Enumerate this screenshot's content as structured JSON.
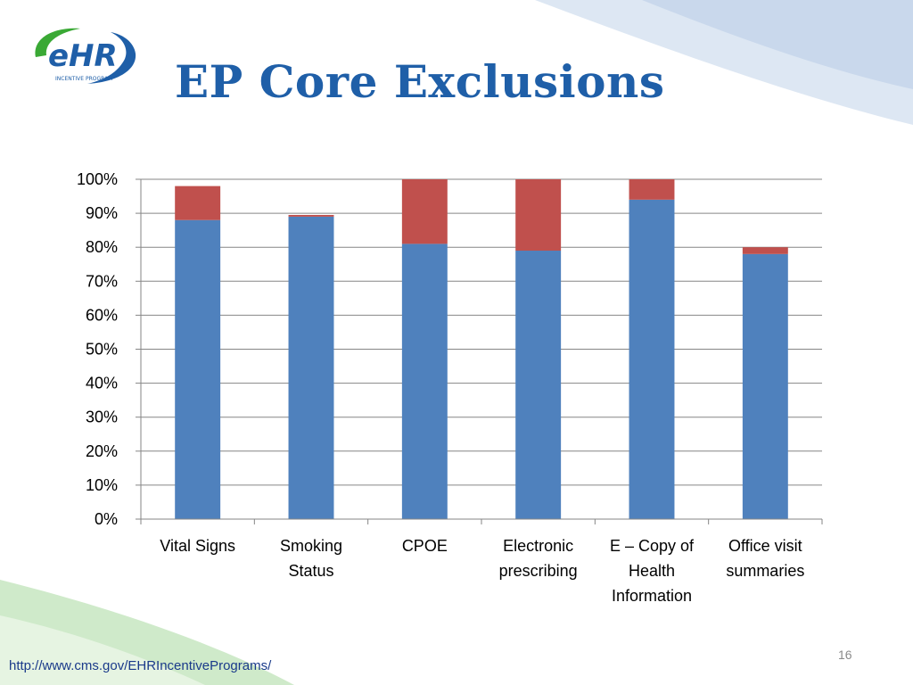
{
  "slide": {
    "title": "EP Core Exclusions",
    "url": "http://www.cms.gov/EHRIncentivePrograms/",
    "page_number": "16",
    "logo_text": "eHR",
    "logo_subtext": "INCENTIVE PROGRAM"
  },
  "colors": {
    "title": "#1f5fa8",
    "series_blue": "#4f81bd",
    "series_red": "#c0504d",
    "logo_green": "#3aa935",
    "logo_blue": "#1f5fa8"
  },
  "chart_data": {
    "type": "bar",
    "stacked": true,
    "title": "",
    "xlabel": "",
    "ylabel": "",
    "categories": [
      [
        "Vital Signs"
      ],
      [
        "Smoking",
        "Status"
      ],
      [
        "CPOE"
      ],
      [
        "Electronic",
        "prescribing"
      ],
      [
        "E – Copy of",
        "Health",
        "Information"
      ],
      [
        "Office visit",
        "summaries"
      ]
    ],
    "series": [
      {
        "values": [
          88,
          89,
          81,
          79,
          94,
          78
        ]
      },
      {
        "values": [
          10,
          0.5,
          19,
          21,
          6,
          2
        ]
      }
    ],
    "ylim": [
      0,
      100
    ],
    "yticks": [
      "0%",
      "10%",
      "20%",
      "30%",
      "40%",
      "50%",
      "60%",
      "70%",
      "80%",
      "90%",
      "100%"
    ],
    "grid": true,
    "legend": "none"
  }
}
